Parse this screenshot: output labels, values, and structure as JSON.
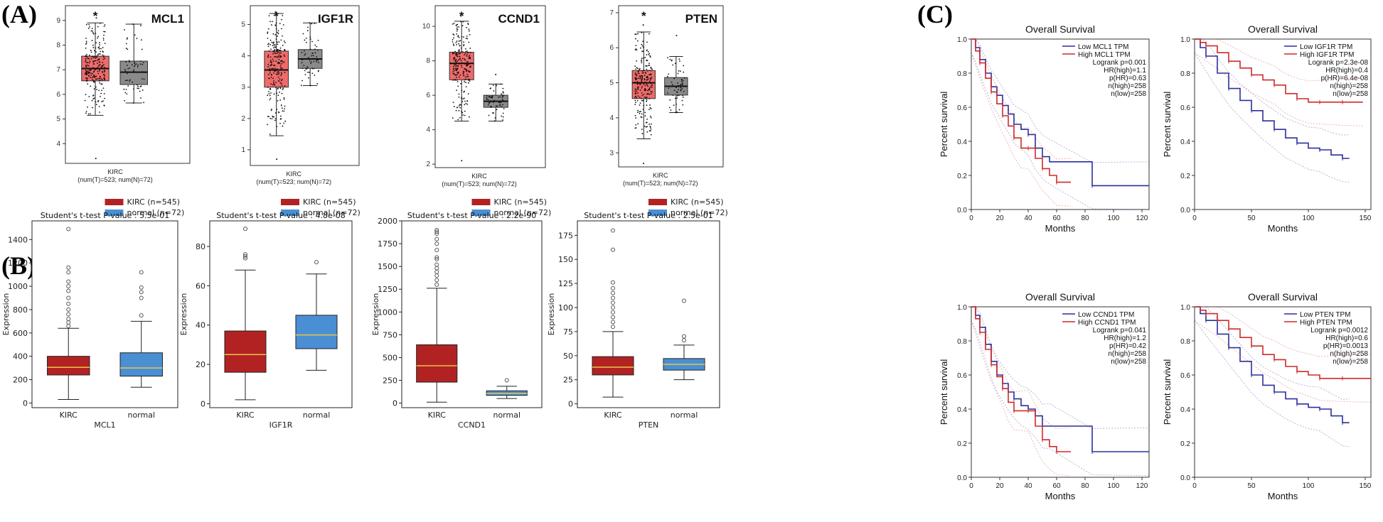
{
  "panel_labels": {
    "a": "(A)",
    "b": "(B)",
    "c": "(C)"
  },
  "colors": {
    "tumor_a": "#f06b6b",
    "normal_a": "#8a8a8a",
    "tumor_b": "#b22222",
    "normal_b": "#4a8fd4",
    "median_b": "#e8c548",
    "km_low": "#2b2f9e",
    "km_high": "#cf2a2a"
  },
  "chart_data": [
    {
      "id": "A1",
      "type": "box",
      "gene": "MCL1",
      "xlabel": "KIRC",
      "sample_note": "(num(T)=523; num(N)=72)",
      "star": "*",
      "ylim": [
        3.2,
        9.6
      ],
      "yticks": [
        "4",
        "5",
        "6",
        "7",
        "8",
        "9"
      ],
      "boxes": [
        {
          "name": "tumor",
          "q1": 6.55,
          "median": 7.05,
          "q3": 7.55,
          "whisker_low": 5.15,
          "whisker_high": 8.9,
          "min": 3.4,
          "max": 9.1
        },
        {
          "name": "normal",
          "q1": 6.4,
          "median": 6.9,
          "q3": 7.35,
          "whisker_low": 5.65,
          "whisker_high": 8.85,
          "min": 5.65,
          "max": 8.85
        }
      ]
    },
    {
      "id": "A2",
      "type": "box",
      "gene": "IGF1R",
      "xlabel": "KIRC",
      "sample_note": "(num(T)=523; num(N)=72)",
      "star": "*",
      "ylim": [
        0.5,
        5.6
      ],
      "yticks": [
        "1",
        "2",
        "3",
        "4",
        "5"
      ],
      "boxes": [
        {
          "name": "tumor",
          "q1": 3.0,
          "median": 3.55,
          "q3": 4.15,
          "whisker_low": 1.45,
          "whisker_high": 5.35,
          "min": 0.7,
          "max": 5.4
        },
        {
          "name": "normal",
          "q1": 3.6,
          "median": 3.9,
          "q3": 4.2,
          "whisker_low": 3.05,
          "whisker_high": 5.05,
          "min": 3.05,
          "max": 5.05
        }
      ]
    },
    {
      "id": "A3",
      "type": "box",
      "gene": "CCND1",
      "xlabel": "KIRC",
      "sample_note": "(num(T)=523; num(N)=72)",
      "star": "*",
      "ylim": [
        1.8,
        11.2
      ],
      "yticks": [
        "2",
        "4",
        "6",
        "8",
        "10"
      ],
      "boxes": [
        {
          "name": "tumor",
          "q1": 6.9,
          "median": 7.85,
          "q3": 8.5,
          "whisker_low": 4.5,
          "whisker_high": 10.3,
          "min": 2.2,
          "max": 10.6
        },
        {
          "name": "normal",
          "q1": 5.3,
          "median": 5.65,
          "q3": 6.0,
          "whisker_low": 4.5,
          "whisker_high": 6.65,
          "min": 4.5,
          "max": 7.2
        }
      ]
    },
    {
      "id": "A4",
      "type": "box",
      "gene": "PTEN",
      "xlabel": "KIRC",
      "sample_note": "(num(T)=523; num(N)=72)",
      "star": "*",
      "ylim": [
        2.6,
        7.2
      ],
      "yticks": [
        "3",
        "4",
        "5",
        "6",
        "7"
      ],
      "boxes": [
        {
          "name": "tumor",
          "q1": 4.55,
          "median": 5.0,
          "q3": 5.35,
          "whisker_low": 3.4,
          "whisker_high": 6.45,
          "min": 2.7,
          "max": 6.65
        },
        {
          "name": "normal",
          "q1": 4.65,
          "median": 4.9,
          "q3": 5.15,
          "whisker_low": 4.15,
          "whisker_high": 5.75,
          "min": 4.15,
          "max": 6.35
        }
      ]
    },
    {
      "id": "B1",
      "type": "box",
      "gene": "MCL1",
      "title": "Student's t-test P-value : 5.5e-01",
      "ylabel": "Expression",
      "legend": [
        "KIRC (n=545)",
        "normal (n=72)"
      ],
      "categories": [
        "KIRC",
        "normal"
      ],
      "ylim": [
        -40,
        1560
      ],
      "yticks": [
        0,
        200,
        400,
        600,
        800,
        1000,
        1200,
        1400
      ],
      "boxes": [
        {
          "q1": 240,
          "median": 305,
          "q3": 400,
          "whisker_low": 30,
          "whisker_high": 640,
          "outliers": [
            660,
            690,
            720,
            760,
            800,
            850,
            900,
            960,
            1000,
            1040,
            1120,
            1160,
            1490
          ]
        },
        {
          "q1": 230,
          "median": 300,
          "q3": 430,
          "whisker_low": 135,
          "whisker_high": 700,
          "outliers": [
            750,
            900,
            950,
            990,
            1120
          ]
        }
      ]
    },
    {
      "id": "B2",
      "type": "box",
      "gene": "IGF1R",
      "title": "Student's t-test P-value : 4.8e-08",
      "ylabel": "Expression",
      "legend": [
        "KIRC (n=545)",
        "normal (n=72)"
      ],
      "categories": [
        "KIRC",
        "normal"
      ],
      "ylim": [
        -2,
        93
      ],
      "yticks": [
        0,
        20,
        40,
        60,
        80
      ],
      "boxes": [
        {
          "q1": 16,
          "median": 25,
          "q3": 37,
          "whisker_low": 2,
          "whisker_high": 68,
          "outliers": [
            74,
            75,
            76,
            89
          ]
        },
        {
          "q1": 28,
          "median": 35,
          "q3": 45,
          "whisker_low": 17,
          "whisker_high": 66,
          "outliers": [
            72
          ]
        }
      ]
    },
    {
      "id": "B3",
      "type": "box",
      "gene": "CCND1",
      "title": "Student's t-test P-value : 2.2e-90",
      "ylabel": "Expression",
      "legend": [
        "KIRC (n=545)",
        "normal (n=72)"
      ],
      "categories": [
        "KIRC",
        "normal"
      ],
      "ylim": [
        -50,
        2000
      ],
      "yticks": [
        0,
        250,
        500,
        750,
        1000,
        1250,
        1500,
        1750,
        2000
      ],
      "boxes": [
        {
          "q1": 230,
          "median": 410,
          "q3": 640,
          "whisker_low": 10,
          "whisker_high": 1260,
          "outliers": [
            1300,
            1350,
            1400,
            1440,
            1480,
            1520,
            1580,
            1600,
            1680,
            1750,
            1800,
            1860,
            1880,
            1900
          ]
        },
        {
          "q1": 85,
          "median": 105,
          "q3": 135,
          "whisker_low": 50,
          "whisker_high": 185,
          "outliers": [
            250
          ]
        }
      ]
    },
    {
      "id": "B4",
      "type": "box",
      "gene": "PTEN",
      "title": "Student's t-test P-value : 2.5e-01",
      "ylabel": "Expression",
      "legend": [
        "KIRC (n=545)",
        "normal (n=72)"
      ],
      "categories": [
        "KIRC",
        "normal"
      ],
      "ylim": [
        -4,
        190
      ],
      "yticks": [
        0,
        25,
        50,
        75,
        100,
        125,
        150,
        175
      ],
      "boxes": [
        {
          "q1": 30,
          "median": 38,
          "q3": 49,
          "whisker_low": 7,
          "whisker_high": 75,
          "outliers": [
            80,
            85,
            90,
            95,
            100,
            105,
            110,
            115,
            120,
            126,
            160,
            180
          ]
        },
        {
          "q1": 35,
          "median": 41,
          "q3": 47,
          "whisker_low": 25,
          "whisker_high": 61,
          "outliers": [
            66,
            70,
            107
          ]
        }
      ]
    },
    {
      "id": "C1",
      "type": "line",
      "title": "Overall Survival",
      "xlabel": "Months",
      "ylabel": "Percent survival",
      "xlim": [
        0,
        125
      ],
      "xticks": [
        0,
        20,
        40,
        60,
        80,
        100,
        120
      ],
      "ylim": [
        0,
        1
      ],
      "yticks": [
        "0.0",
        "0.2",
        "0.4",
        "0.6",
        "0.8",
        "1.0"
      ],
      "legend": [
        "Low MCL1 TPM",
        "High MCL1 TPM"
      ],
      "stats": [
        "Logrank p=0.001",
        "HR(high)=1.1",
        "p(HR)=0.63",
        "n(high)=258",
        "n(low)=258"
      ],
      "series": [
        {
          "name": "Low MCL1 TPM",
          "x": [
            0,
            3,
            6,
            10,
            14,
            18,
            22,
            26,
            30,
            35,
            40,
            45,
            50,
            55,
            85,
            125
          ],
          "y": [
            1,
            0.95,
            0.88,
            0.8,
            0.72,
            0.67,
            0.61,
            0.56,
            0.5,
            0.47,
            0.44,
            0.36,
            0.31,
            0.28,
            0.14,
            0.14
          ]
        },
        {
          "name": "High MCL1 TPM",
          "x": [
            0,
            3,
            6,
            10,
            14,
            18,
            22,
            26,
            30,
            35,
            40,
            45,
            50,
            55,
            60,
            70
          ],
          "y": [
            1,
            0.93,
            0.86,
            0.77,
            0.69,
            0.62,
            0.55,
            0.49,
            0.42,
            0.36,
            0.36,
            0.3,
            0.24,
            0.2,
            0.16,
            0.16
          ]
        }
      ]
    },
    {
      "id": "C2",
      "type": "line",
      "title": "Overall Survival",
      "xlabel": "Months",
      "ylabel": "Percent survival",
      "xlim": [
        0,
        155
      ],
      "xticks": [
        0,
        50,
        100,
        150
      ],
      "ylim": [
        0,
        1
      ],
      "yticks": [
        "0.0",
        "0.2",
        "0.4",
        "0.6",
        "0.8",
        "1.0"
      ],
      "legend": [
        "Low IGF1R TPM",
        "High IGF1R TPM"
      ],
      "stats": [
        "Logrank p=2.3e-08",
        "HR(high)=0.4",
        "p(HR)=6.4e-08",
        "n(high)=258",
        "n(low)=258"
      ],
      "series": [
        {
          "name": "Low IGF1R TPM",
          "x": [
            0,
            5,
            10,
            20,
            30,
            40,
            50,
            60,
            70,
            80,
            90,
            100,
            110,
            120,
            130,
            136
          ],
          "y": [
            1,
            0.95,
            0.9,
            0.8,
            0.71,
            0.64,
            0.58,
            0.52,
            0.47,
            0.42,
            0.39,
            0.36,
            0.35,
            0.32,
            0.3,
            0.3
          ]
        },
        {
          "name": "High IGF1R TPM",
          "x": [
            0,
            5,
            10,
            20,
            30,
            40,
            50,
            60,
            70,
            80,
            90,
            100,
            110,
            120,
            130,
            148
          ],
          "y": [
            1,
            0.98,
            0.96,
            0.92,
            0.87,
            0.83,
            0.79,
            0.76,
            0.73,
            0.68,
            0.65,
            0.63,
            0.63,
            0.63,
            0.63,
            0.63
          ]
        }
      ]
    },
    {
      "id": "C3",
      "type": "line",
      "title": "Overall Survival",
      "xlabel": "Months",
      "ylabel": "Percent survival",
      "xlim": [
        0,
        125
      ],
      "xticks": [
        0,
        20,
        40,
        60,
        80,
        100,
        120
      ],
      "ylim": [
        0,
        1
      ],
      "yticks": [
        "0.0",
        "0.2",
        "0.4",
        "0.6",
        "0.8",
        "1.0"
      ],
      "legend": [
        "Low CCND1 TPM",
        "High CCND1 TPM"
      ],
      "stats": [
        "Logrank p=0.041",
        "HR(high)=1.2",
        "p(HR)=0.42",
        "n(high)=258",
        "n(low)=258"
      ],
      "series": [
        {
          "name": "Low CCND1 TPM",
          "x": [
            0,
            3,
            6,
            10,
            14,
            18,
            22,
            26,
            30,
            35,
            40,
            45,
            50,
            55,
            85,
            125
          ],
          "y": [
            1,
            0.95,
            0.88,
            0.78,
            0.68,
            0.6,
            0.55,
            0.5,
            0.46,
            0.42,
            0.4,
            0.36,
            0.3,
            0.3,
            0.15,
            0.15
          ]
        },
        {
          "name": "High CCND1 TPM",
          "x": [
            0,
            3,
            6,
            10,
            14,
            18,
            22,
            26,
            30,
            35,
            40,
            45,
            50,
            55,
            60,
            70
          ],
          "y": [
            1,
            0.93,
            0.85,
            0.75,
            0.66,
            0.59,
            0.52,
            0.44,
            0.39,
            0.39,
            0.39,
            0.3,
            0.22,
            0.18,
            0.15,
            0.15
          ]
        }
      ]
    },
    {
      "id": "C4",
      "type": "line",
      "title": "Overall Survival",
      "xlabel": "Months",
      "ylabel": "Percent survival",
      "xlim": [
        0,
        155
      ],
      "xticks": [
        0,
        50,
        100,
        150
      ],
      "ylim": [
        0,
        1
      ],
      "yticks": [
        "0.0",
        "0.2",
        "0.4",
        "0.6",
        "0.8",
        "1.0"
      ],
      "legend": [
        "Low PTEN TPM",
        "High PTEN TPM"
      ],
      "stats": [
        "Logrank p=0.0012",
        "HR(high)=0.6",
        "p(HR)=0.0013",
        "n(high)=258",
        "n(low)=258"
      ],
      "series": [
        {
          "name": "Low PTEN TPM",
          "x": [
            0,
            5,
            10,
            20,
            30,
            40,
            50,
            60,
            70,
            80,
            90,
            100,
            110,
            120,
            130,
            136
          ],
          "y": [
            1,
            0.96,
            0.92,
            0.84,
            0.76,
            0.68,
            0.6,
            0.54,
            0.5,
            0.46,
            0.43,
            0.41,
            0.4,
            0.36,
            0.32,
            0.32
          ]
        },
        {
          "name": "High PTEN TPM",
          "x": [
            0,
            5,
            10,
            20,
            30,
            40,
            50,
            60,
            70,
            80,
            90,
            100,
            110,
            120,
            130,
            155
          ],
          "y": [
            1,
            0.98,
            0.96,
            0.92,
            0.87,
            0.82,
            0.77,
            0.72,
            0.69,
            0.65,
            0.62,
            0.6,
            0.58,
            0.58,
            0.58,
            0.58
          ]
        }
      ]
    }
  ]
}
